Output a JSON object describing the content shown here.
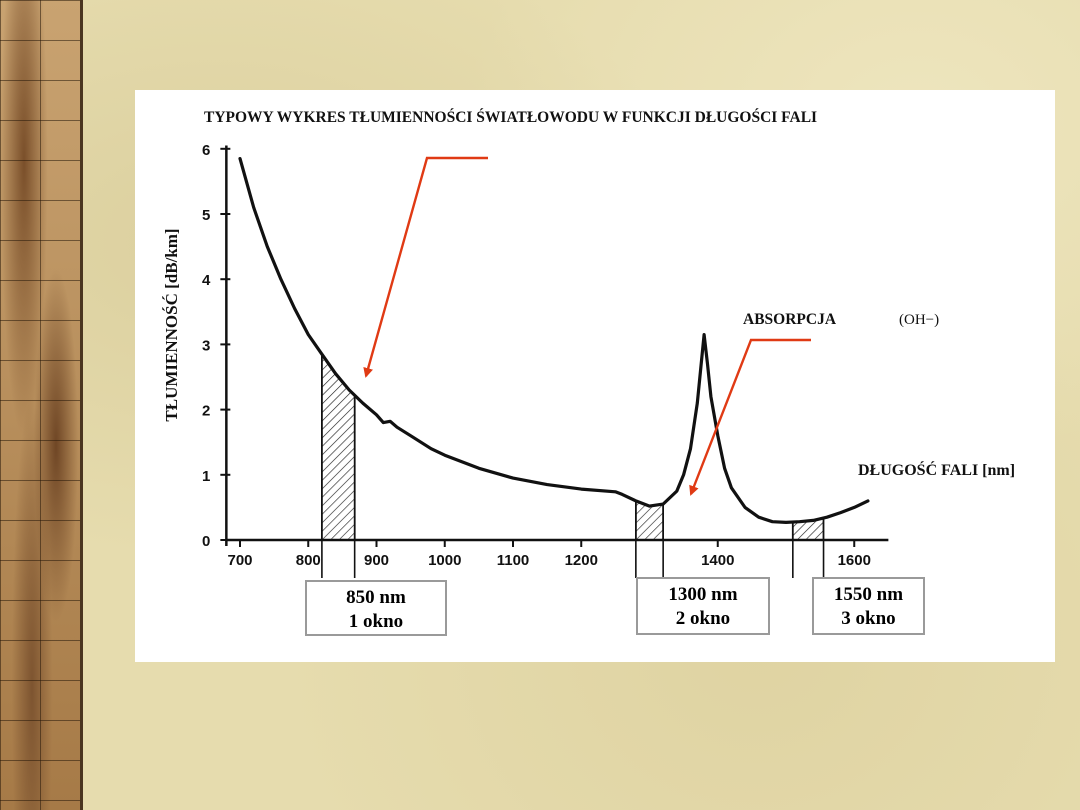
{
  "chart_data": {
    "type": "line",
    "title": "TYPOWY WYKRES TŁUMIENNOŚCI ŚWIATŁOWODU W FUNKCJI DŁUGOŚCI FALI",
    "ylabel": "TŁUMIENNOŚĆ [dB/km]",
    "xlabel": "DŁUGOŚĆ FALI [nm]",
    "xlim": [
      680,
      1620
    ],
    "ylim": [
      0,
      6
    ],
    "x_ticks": [
      "700",
      "800",
      "900",
      "1000",
      "1100",
      "1200",
      "1400",
      "1600"
    ],
    "y_ticks": [
      "0",
      "1",
      "2",
      "3",
      "4",
      "5",
      "6"
    ],
    "series": [
      {
        "x": [
          700,
          720,
          740,
          760,
          780,
          800,
          820,
          840,
          860,
          880,
          900,
          910,
          920,
          930,
          950,
          980,
          1000,
          1050,
          1100,
          1150,
          1200,
          1250,
          1260,
          1280,
          1300,
          1320,
          1340,
          1350,
          1360,
          1370,
          1380,
          1385,
          1390,
          1400,
          1410,
          1420,
          1440,
          1460,
          1480,
          1500,
          1520,
          1540,
          1560,
          1580,
          1600,
          1620
        ],
        "y": [
          5.85,
          5.1,
          4.5,
          4.0,
          3.55,
          3.15,
          2.85,
          2.55,
          2.3,
          2.1,
          1.92,
          1.8,
          1.82,
          1.73,
          1.6,
          1.4,
          1.3,
          1.1,
          0.95,
          0.85,
          0.78,
          0.74,
          0.7,
          0.6,
          0.52,
          0.55,
          0.75,
          1.0,
          1.4,
          2.1,
          3.15,
          2.7,
          2.2,
          1.6,
          1.1,
          0.8,
          0.5,
          0.35,
          0.28,
          0.27,
          0.28,
          0.3,
          0.35,
          0.42,
          0.5,
          0.6
        ]
      }
    ],
    "windows": [
      {
        "x0": 820,
        "x1": 868,
        "label_nm": "850 nm",
        "label_window": "1 okno"
      },
      {
        "x0": 1280,
        "x1": 1320,
        "label_nm": "1300 nm",
        "label_window": "2 okno"
      },
      {
        "x0": 1510,
        "x1": 1555,
        "label_nm": "1550 nm",
        "label_window": "3 okno"
      }
    ],
    "annotations": {
      "absorption": "ABSORPCJA",
      "absorption_formula": "(OH−)"
    },
    "colors": {
      "curve": "#111111",
      "arrow": "#e03a14",
      "hatch": "#222222"
    }
  }
}
